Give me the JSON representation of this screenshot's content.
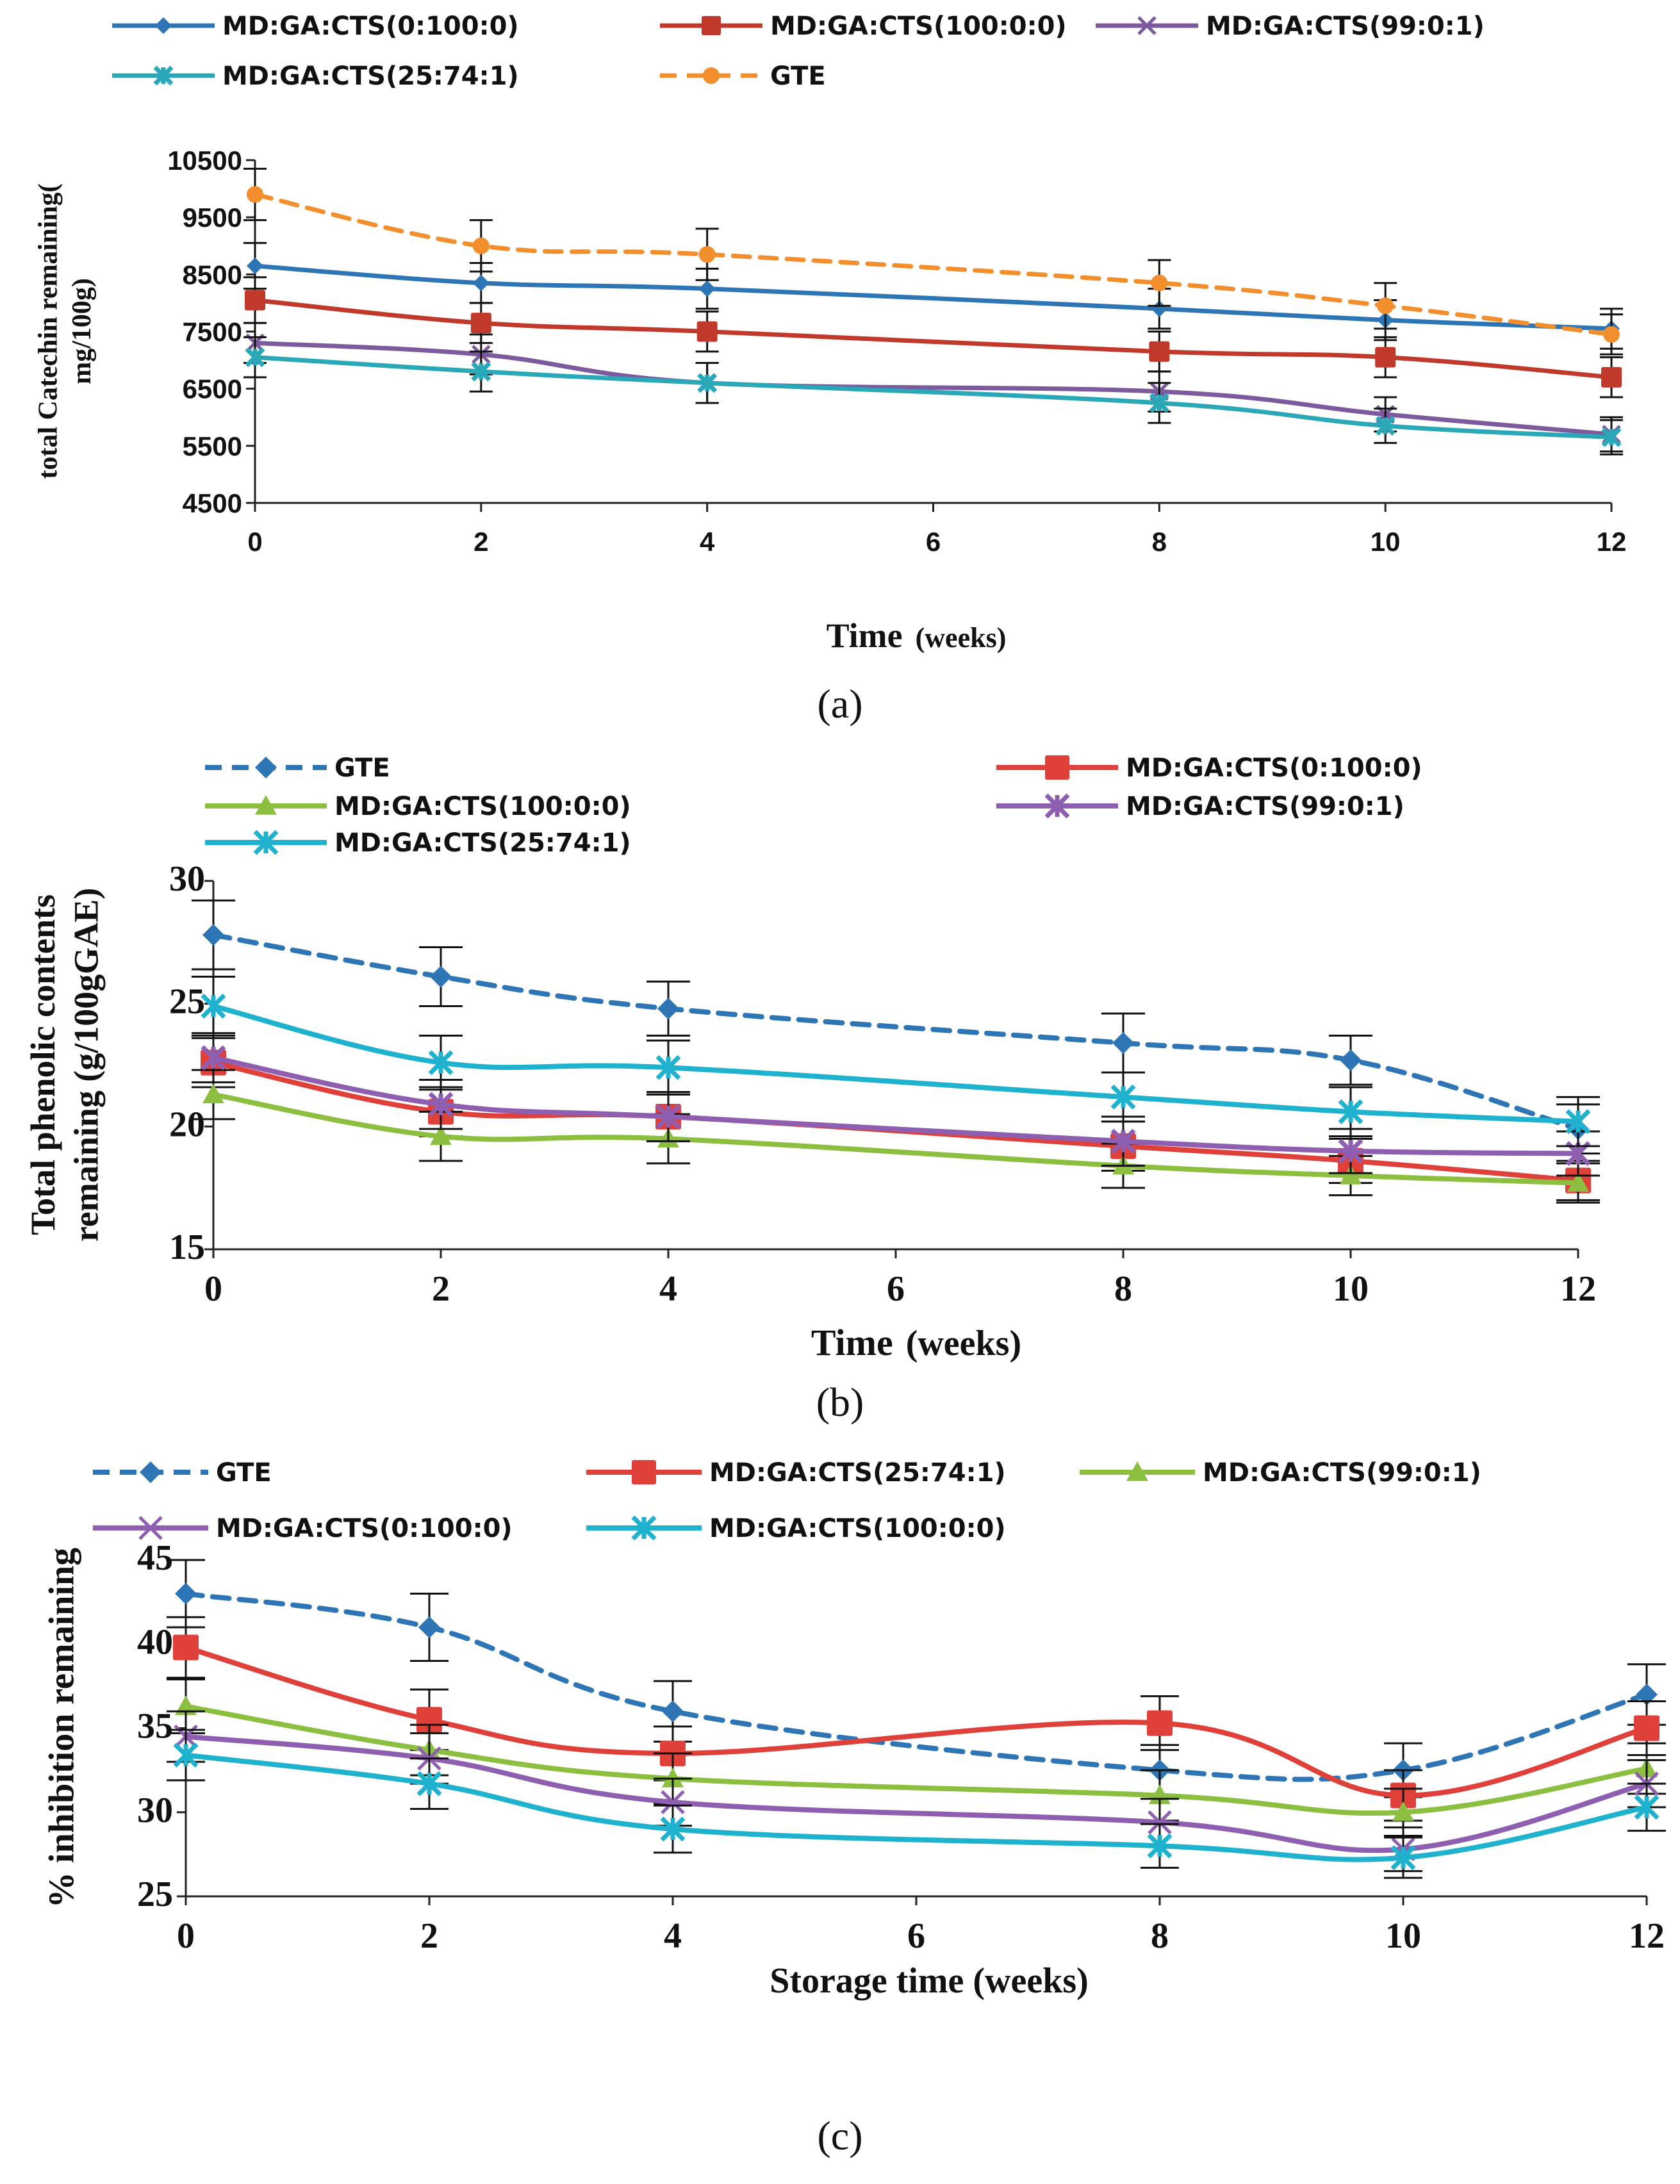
{
  "chart_data": [
    {
      "type": "line",
      "panel_label": "(a)",
      "xlabel": "Time",
      "xlabel_unit": "(weeks)",
      "ylabel_lines": [
        "total Catechin remaining(",
        "mg/100g)"
      ],
      "x": [
        0,
        2,
        4,
        8,
        10,
        12
      ],
      "xticks": [
        0,
        2,
        4,
        6,
        8,
        10,
        12
      ],
      "xlim": [
        0,
        12
      ],
      "ylim": [
        4500,
        10500
      ],
      "yticks": [
        4500,
        5500,
        6500,
        7500,
        8500,
        9500,
        10500
      ],
      "grid": false,
      "legend_position": "top",
      "series": [
        {
          "name": "MD:GA:CTS(0:100:0)",
          "color": "#2e75b6",
          "marker": "diamond",
          "dash": false,
          "values": [
            8650,
            8350,
            8250,
            7900,
            7700,
            7550
          ],
          "errors": [
            400,
            350,
            350,
            350,
            350,
            350
          ]
        },
        {
          "name": "MD:GA:CTS(100:0:0)",
          "color": "#c0392b",
          "marker": "square",
          "dash": false,
          "values": [
            8050,
            7650,
            7500,
            7150,
            7050,
            6700
          ],
          "errors": [
            400,
            350,
            350,
            350,
            350,
            350
          ]
        },
        {
          "name": "MD:GA:CTS(99:0:1)",
          "color": "#7d5a9e",
          "marker": "x",
          "dash": false,
          "values": [
            7300,
            7100,
            6600,
            6450,
            6050,
            5700
          ],
          "errors": [
            350,
            350,
            350,
            350,
            300,
            300
          ]
        },
        {
          "name": "MD:GA:CTS(25:74:1)",
          "color": "#2aa8b8",
          "marker": "asterisk",
          "dash": false,
          "values": [
            7050,
            6800,
            6600,
            6250,
            5850,
            5650
          ],
          "errors": [
            350,
            350,
            350,
            350,
            300,
            300
          ]
        },
        {
          "name": "GTE",
          "color": "#f28e2b",
          "marker": "circle",
          "dash": true,
          "values": [
            9900,
            9000,
            8850,
            8350,
            7950,
            7450
          ],
          "errors": [
            450,
            450,
            450,
            400,
            400,
            350
          ]
        }
      ]
    },
    {
      "type": "line",
      "panel_label": "(b)",
      "xlabel": "Time",
      "xlabel_unit": "(weeks)",
      "ylabel_lines": [
        "Total phenolic contents",
        "remaining  (g/100gGAE)"
      ],
      "x": [
        0,
        2,
        4,
        8,
        10,
        12
      ],
      "xticks": [
        0,
        2,
        4,
        6,
        8,
        10,
        12
      ],
      "xlim": [
        0,
        12
      ],
      "ylim": [
        15,
        30
      ],
      "yticks": [
        15,
        20,
        25,
        30
      ],
      "grid": false,
      "legend_position": "top",
      "series": [
        {
          "name": "GTE",
          "color": "#2e75b6",
          "marker": "diamond",
          "dash": true,
          "values": [
            27.8,
            26.1,
            24.8,
            23.4,
            22.7,
            19.9
          ],
          "errors": [
            1.4,
            1.2,
            1.1,
            1.2,
            1.0,
            1.0
          ]
        },
        {
          "name": "MD:GA:CTS(0:100:0)",
          "color": "#e0403a",
          "marker": "square",
          "dash": false,
          "values": [
            22.6,
            20.6,
            20.4,
            19.2,
            18.6,
            17.8
          ],
          "errors": [
            1.0,
            1.0,
            1.0,
            1.0,
            0.9,
            0.8
          ]
        },
        {
          "name": "MD:GA:CTS(100:0:0)",
          "color": "#8cbf3f",
          "marker": "triangle",
          "dash": false,
          "values": [
            21.3,
            19.6,
            19.5,
            18.4,
            18.0,
            17.7
          ],
          "errors": [
            1.0,
            1.0,
            1.0,
            0.9,
            0.8,
            0.8
          ]
        },
        {
          "name": "MD:GA:CTS(99:0:1)",
          "color": "#8e5fb0",
          "marker": "asterisk",
          "dash": false,
          "values": [
            22.8,
            20.9,
            20.4,
            19.4,
            19.0,
            18.9
          ],
          "errors": [
            1.0,
            1.0,
            1.0,
            1.0,
            0.9,
            0.9
          ]
        },
        {
          "name": "MD:GA:CTS(25:74:1)",
          "color": "#1fb2cf",
          "marker": "asterisk",
          "dash": false,
          "values": [
            24.9,
            22.6,
            22.4,
            21.2,
            20.6,
            20.2
          ],
          "errors": [
            1.2,
            1.1,
            1.1,
            1.0,
            1.0,
            1.0
          ]
        }
      ]
    },
    {
      "type": "line",
      "panel_label": "(c)",
      "xlabel": "Storage time (weeks)",
      "ylabel_lines": [
        "% inhibition  remaining"
      ],
      "x": [
        0,
        2,
        4,
        8,
        10,
        12
      ],
      "xticks": [
        0,
        2,
        4,
        6,
        8,
        10,
        12
      ],
      "xlim": [
        0,
        12
      ],
      "ylim": [
        25,
        45
      ],
      "yticks": [
        25,
        30,
        35,
        40,
        45
      ],
      "grid": false,
      "legend_position": "top",
      "series": [
        {
          "name": "GTE",
          "color": "#2e75b6",
          "marker": "diamond",
          "dash": true,
          "values": [
            43.0,
            41.0,
            36.0,
            32.5,
            32.5,
            37.0
          ],
          "errors": [
            2.0,
            2.0,
            1.8,
            1.5,
            1.6,
            1.8
          ]
        },
        {
          "name": "MD:GA:CTS(25:74:1)",
          "color": "#e0403a",
          "marker": "square",
          "dash": false,
          "values": [
            39.8,
            35.5,
            33.5,
            35.3,
            31.0,
            35.0
          ],
          "errors": [
            1.8,
            1.8,
            1.6,
            1.6,
            1.5,
            1.6
          ]
        },
        {
          "name": "MD:GA:CTS(99:0:1)",
          "color": "#8cbf3f",
          "marker": "triangle",
          "dash": false,
          "values": [
            36.3,
            33.7,
            32.0,
            31.0,
            30.0,
            32.6
          ],
          "errors": [
            1.6,
            1.5,
            1.5,
            1.5,
            1.4,
            1.5
          ]
        },
        {
          "name": "MD:GA:CTS(0:100:0)",
          "color": "#8e5fb0",
          "marker": "x",
          "dash": false,
          "values": [
            34.5,
            33.2,
            30.6,
            29.4,
            27.8,
            31.7
          ],
          "errors": [
            1.5,
            1.5,
            1.4,
            1.4,
            1.3,
            1.4
          ]
        },
        {
          "name": "MD:GA:CTS(100:0:0)",
          "color": "#1fb2cf",
          "marker": "asterisk",
          "dash": false,
          "values": [
            33.4,
            31.7,
            29.0,
            28.0,
            27.3,
            30.3
          ],
          "errors": [
            1.5,
            1.5,
            1.4,
            1.3,
            1.2,
            1.4
          ]
        }
      ]
    }
  ]
}
